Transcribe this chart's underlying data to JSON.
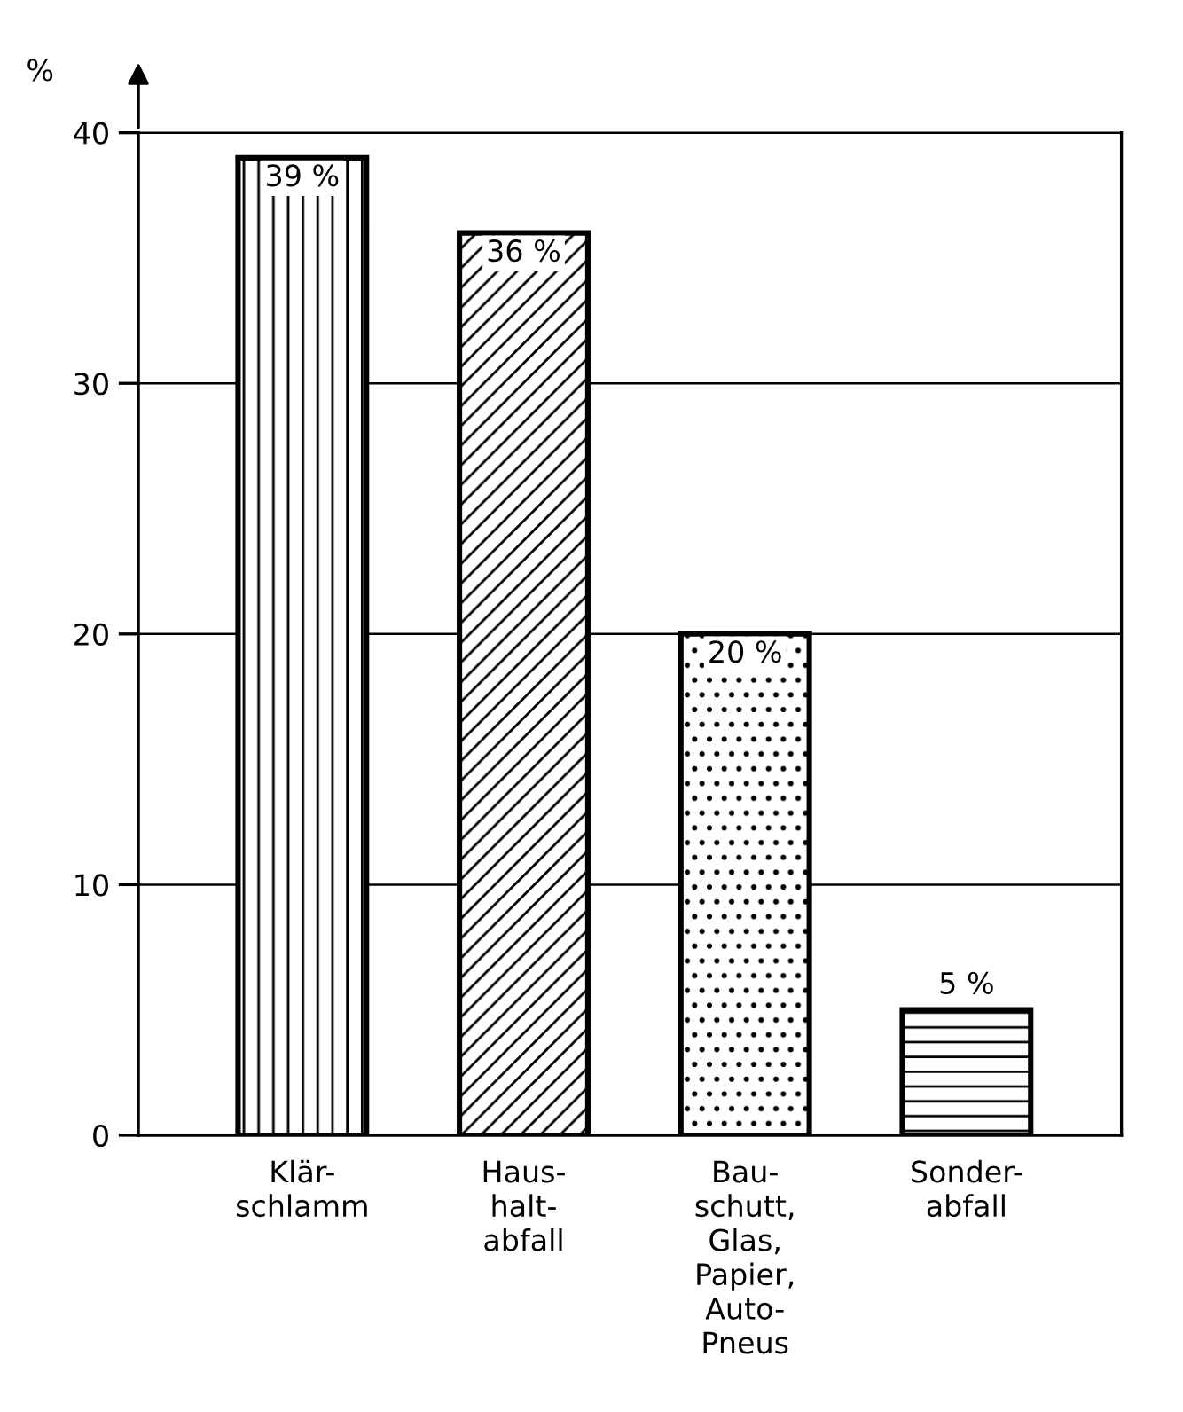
{
  "chart_data": {
    "type": "bar",
    "ylabel": "%",
    "categories": [
      "Klär-\nschlamm",
      "Haus-\nhalt-\nabfall",
      "Bau-\nschutt,\nGlas,\nPapier,\nAuto-\nPneus",
      "Sonder-\nabfall"
    ],
    "values": [
      39,
      36,
      20,
      5
    ],
    "colors": [
      "#000000",
      "#000000",
      "#000000",
      "#000000"
    ],
    "value_labels": [
      "39 %",
      "36 %",
      "20 %",
      "5 %"
    ],
    "ylim": [
      0,
      40
    ],
    "yticks": [
      0,
      10,
      20,
      30,
      40
    ],
    "grid": "y"
  }
}
